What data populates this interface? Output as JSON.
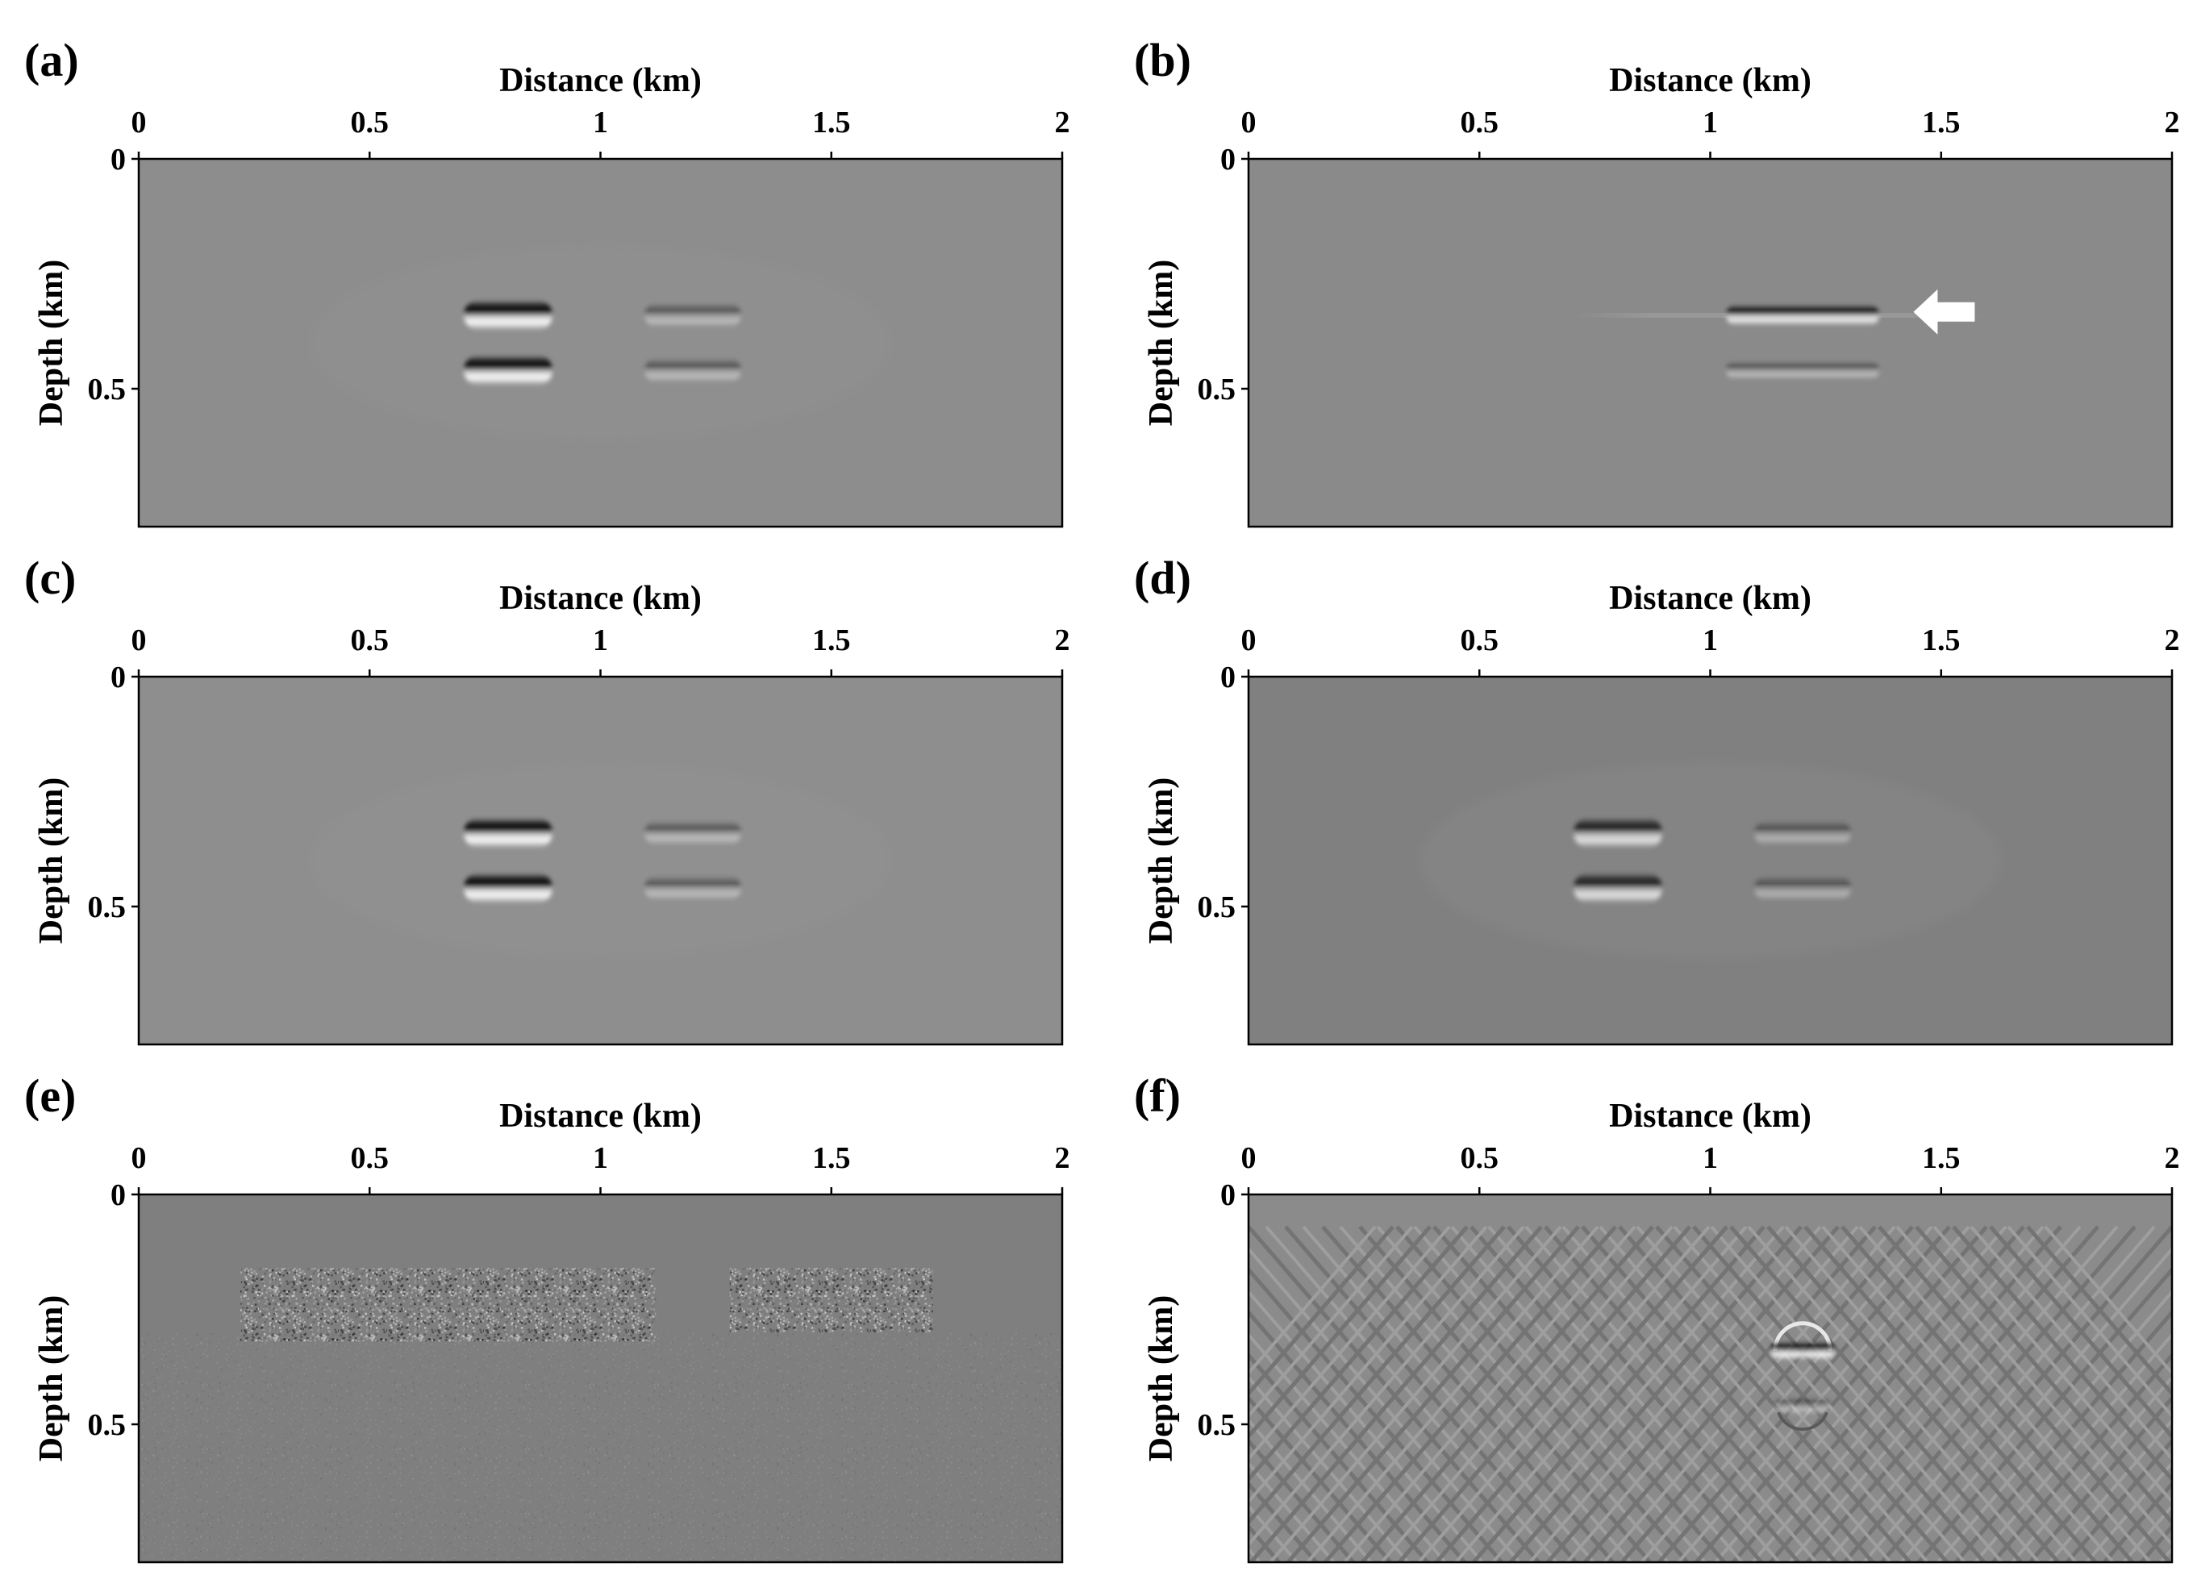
{
  "figure": {
    "panels": [
      {
        "id": "a",
        "label": "(a)",
        "background": "#8d8d8d",
        "features": "reflectors"
      },
      {
        "id": "b",
        "label": "(b)",
        "background": "#8a8a8a",
        "features": "single-anomaly",
        "annotation": "white-arrow"
      },
      {
        "id": "c",
        "label": "(c)",
        "background": "#8e8e8e",
        "features": "reflectors"
      },
      {
        "id": "d",
        "label": "(d)",
        "background": "#808080",
        "features": "reflectors-soft"
      },
      {
        "id": "e",
        "label": "(e)",
        "background": "#7f7f7f",
        "features": "noise"
      },
      {
        "id": "f",
        "label": "(f)",
        "background": "#8b8b8b",
        "features": "ringing"
      }
    ]
  },
  "chart_data": {
    "type": "heatmap",
    "xlabel": "Distance (km)",
    "ylabel": "Depth (km)",
    "xlim": [
      0,
      2
    ],
    "ylim": [
      0,
      0.8
    ],
    "xticks": [
      0,
      0.5,
      1,
      1.5,
      2
    ],
    "xtick_labels": [
      "0",
      "0.5",
      "1",
      "1.5",
      "2"
    ],
    "yticks": [
      0,
      0.5
    ],
    "ytick_labels": [
      "0",
      "0.5"
    ],
    "x_axis_position": "top",
    "y_axis_reversed": true,
    "colormap": "gray",
    "grid": false,
    "reflector_events": {
      "depths_km": [
        0.34,
        0.46
      ],
      "anomaly_centers_km": [
        0.8,
        1.2
      ]
    }
  }
}
